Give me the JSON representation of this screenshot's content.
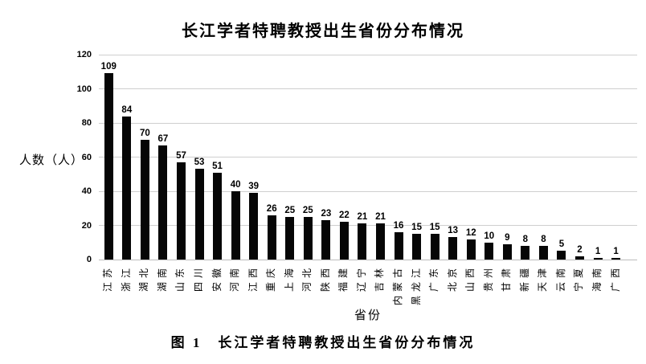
{
  "figure": {
    "chart_title": "长江学者特聘教授出生省份分布情况",
    "y_axis_label": "人数（人）",
    "x_axis_label": "省份",
    "caption": "图 1　长江学者特聘教授出生省份分布情况"
  },
  "colors": {
    "bar": "#060606",
    "gridline": "#cfcfcf",
    "text": "#000000",
    "background": "#ffffff"
  },
  "chart_data": {
    "type": "bar",
    "title": "长江学者特聘教授出生省份分布情况",
    "xlabel": "省份",
    "ylabel": "人数（人）",
    "ylim": [
      0,
      120
    ],
    "yticks": [
      0,
      20,
      40,
      60,
      80,
      100,
      120
    ],
    "grid": true,
    "legend": false,
    "data_labels": true,
    "categories": [
      "江苏",
      "浙江",
      "湖北",
      "湖南",
      "山东",
      "四川",
      "安徽",
      "河南",
      "江西",
      "重庆",
      "上海",
      "河北",
      "陕西",
      "福建",
      "辽宁",
      "吉林",
      "内蒙古",
      "黑龙江",
      "广东",
      "北京",
      "山西",
      "贵州",
      "甘肃",
      "新疆",
      "天津",
      "云南",
      "宁夏",
      "海南",
      "广西"
    ],
    "values": [
      109,
      84,
      70,
      67,
      57,
      53,
      51,
      40,
      39,
      26,
      25,
      25,
      23,
      22,
      21,
      21,
      16,
      15,
      15,
      13,
      12,
      10,
      9,
      8,
      8,
      5,
      2,
      1,
      1
    ]
  }
}
